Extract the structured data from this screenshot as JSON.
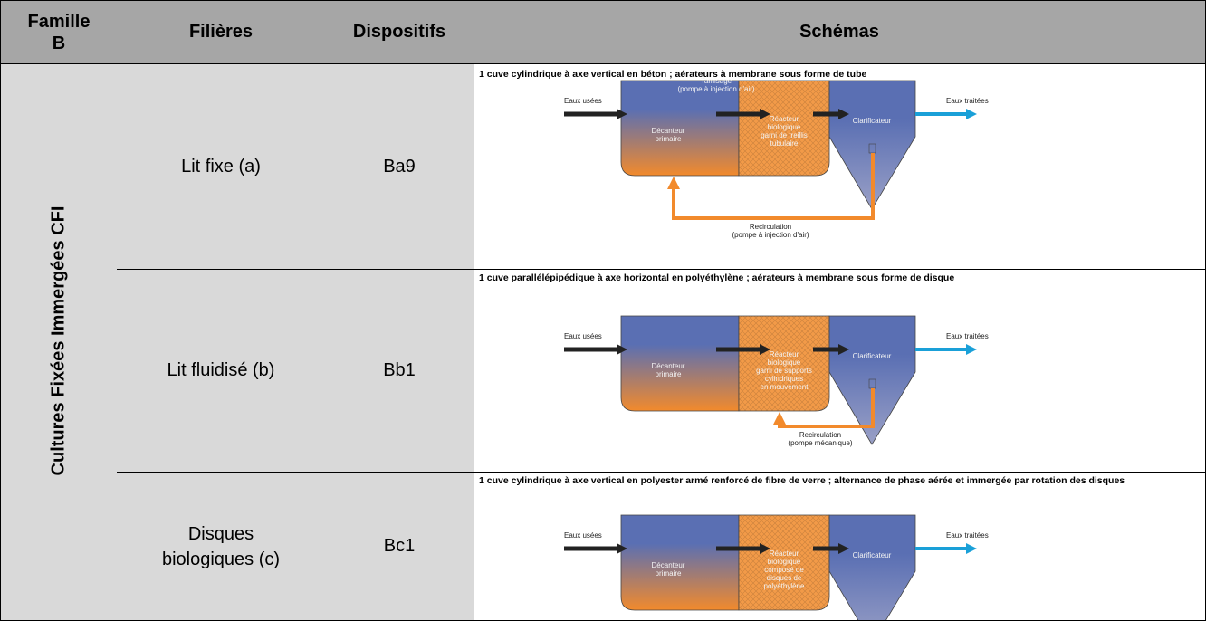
{
  "header": {
    "famille": "Famille B",
    "filieres": "Filières",
    "dispositifs": "Dispositifs",
    "schemas": "Schémas"
  },
  "family_label": "Cultures Fixées Immergées CFI",
  "rows": [
    {
      "filiere": "Lit fixe (a)",
      "dispositif": "Ba9",
      "caption": "1 cuve cylindrique à axe vertical en béton ; aérateurs à membrane sous forme de tube",
      "diagram": {
        "inlet": "Eaux usées",
        "outlet": "Eaux traitées",
        "screening": [
          "Tamisage",
          "(pompe à injection d'air)"
        ],
        "decanter": [
          "Décanteur",
          "primaire"
        ],
        "reactor": [
          "Réacteur",
          "biologique",
          "garni de treillis",
          "tubulaire"
        ],
        "clarifier": "Clarificateur",
        "recirculation": [
          "Recirculation",
          "(pompe à injection d'air)"
        ]
      }
    },
    {
      "filiere": "Lit fluidisé (b)",
      "dispositif": "Bb1",
      "caption": "1 cuve parallélépipédique à axe horizontal en polyéthylène ; aérateurs à membrane sous forme de disque",
      "diagram": {
        "inlet": "Eaux usées",
        "outlet": "Eaux traitées",
        "decanter": [
          "Décanteur",
          "primaire"
        ],
        "reactor": [
          "Réacteur",
          "biologique",
          "garni de supports",
          "cylindriques",
          "en mouvement"
        ],
        "clarifier": "Clarificateur",
        "recirculation": [
          "Recirculation",
          "(pompe mécanique)"
        ]
      }
    },
    {
      "filiere": "Disques biologiques (c)",
      "dispositif": "Bc1",
      "caption": "1 cuve cylindrique à axe vertical en polyester armé renforcé de fibre de verre ; alternance de phase aérée et immergée par rotation des disques",
      "diagram": {
        "inlet": "Eaux usées",
        "outlet": "Eaux traitées",
        "decanter": [
          "Décanteur",
          "primaire"
        ],
        "reactor": [
          "Réacteur",
          "biologique",
          "composé de",
          "disques de",
          "polyéthylène"
        ],
        "clarifier": "Clarificateur"
      }
    }
  ]
}
